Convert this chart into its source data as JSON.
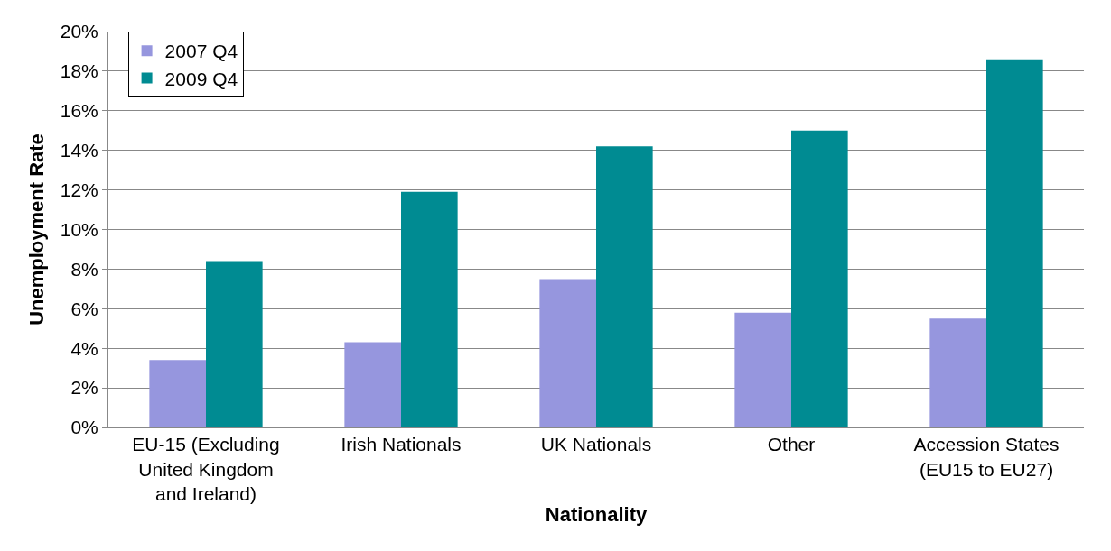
{
  "chart_data": {
    "type": "bar",
    "xlabel": "Nationality",
    "ylabel": "Unemployment Rate",
    "categories": [
      "EU-15 (Excluding\nUnited Kingdom\nand Ireland)",
      "Irish Nationals",
      "UK Nationals",
      "Other",
      "Accession States\n(EU15 to EU27)"
    ],
    "series": [
      {
        "name": "2007 Q4",
        "color": "#9696de",
        "values": [
          3.4,
          4.3,
          7.5,
          5.8,
          5.5
        ]
      },
      {
        "name": "2009 Q4",
        "color": "#008b92",
        "values": [
          8.4,
          11.9,
          14.2,
          15.0,
          18.6
        ]
      }
    ],
    "ylim": [
      0,
      20
    ],
    "yticks": [
      {
        "value": 0,
        "label": "0%"
      },
      {
        "value": 2,
        "label": "2%"
      },
      {
        "value": 4,
        "label": "4%"
      },
      {
        "value": 6,
        "label": "6%"
      },
      {
        "value": 8,
        "label": "8%"
      },
      {
        "value": 10,
        "label": "10%"
      },
      {
        "value": 12,
        "label": "12%"
      },
      {
        "value": 14,
        "label": "14%"
      },
      {
        "value": 16,
        "label": "16%"
      },
      {
        "value": 18,
        "label": "18%"
      },
      {
        "value": 20,
        "label": "20%"
      }
    ],
    "grid": "y",
    "legend": "top left"
  }
}
